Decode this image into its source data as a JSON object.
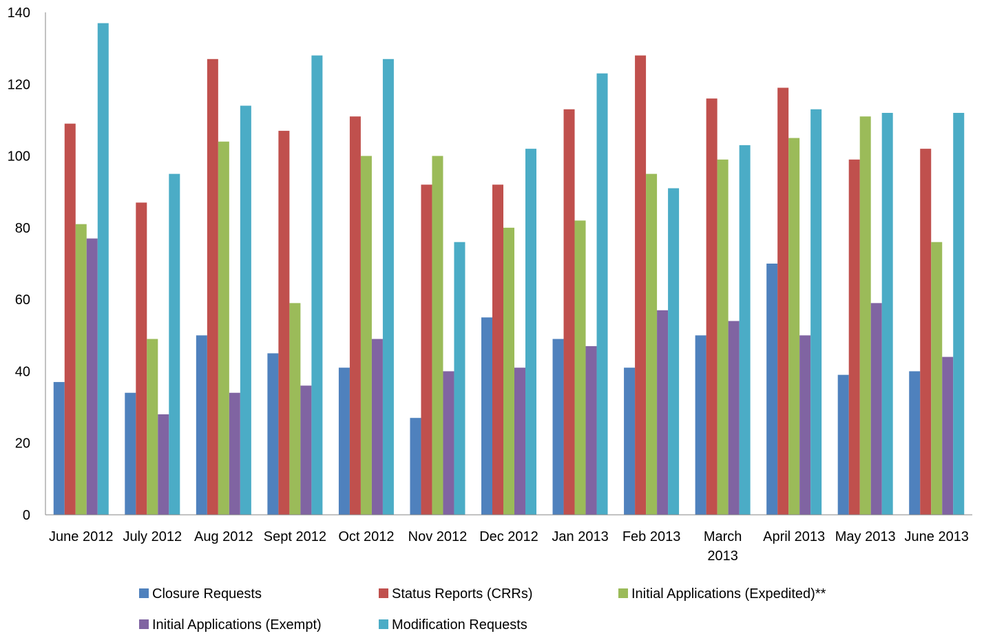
{
  "chart_data": {
    "type": "bar",
    "title": "",
    "xlabel": "",
    "ylabel": "",
    "ylim": [
      0,
      140
    ],
    "yticks": [
      0,
      20,
      40,
      60,
      80,
      100,
      120,
      140
    ],
    "grid": false,
    "legend_position": "bottom",
    "categories": [
      "June 2012",
      "July 2012",
      "Aug 2012",
      "Sept 2012",
      "Oct 2012",
      "Nov 2012",
      "Dec 2012",
      "Jan 2013",
      "Feb 2013",
      "March 2013",
      "April 2013",
      "May 2013",
      "June 2013"
    ],
    "category_display_lines": [
      [
        "June 2012"
      ],
      [
        "July 2012"
      ],
      [
        "Aug 2012"
      ],
      [
        "Sept 2012"
      ],
      [
        "Oct 2012"
      ],
      [
        "Nov 2012"
      ],
      [
        "Dec 2012"
      ],
      [
        "Jan 2013"
      ],
      [
        "Feb 2013"
      ],
      [
        "March",
        "2013"
      ],
      [
        "April 2013"
      ],
      [
        "May 2013"
      ],
      [
        "June 2013"
      ]
    ],
    "series": [
      {
        "name": "Closure Requests",
        "color": "#4F81BD",
        "values": [
          37,
          34,
          50,
          45,
          41,
          27,
          55,
          49,
          41,
          50,
          70,
          39,
          40
        ]
      },
      {
        "name": "Status Reports (CRRs)",
        "color": "#C0504D",
        "values": [
          109,
          87,
          127,
          107,
          111,
          92,
          92,
          113,
          128,
          116,
          119,
          99,
          102
        ]
      },
      {
        "name": "Initial Applications (Expedited)**",
        "color": "#9BBB59",
        "values": [
          81,
          49,
          104,
          59,
          100,
          100,
          80,
          82,
          95,
          99,
          105,
          111,
          76
        ]
      },
      {
        "name": "Initial Applications (Exempt)",
        "color": "#8064A2",
        "values": [
          77,
          28,
          34,
          36,
          49,
          40,
          41,
          47,
          57,
          54,
          50,
          59,
          44
        ]
      },
      {
        "name": "Modification Requests",
        "color": "#4BACC6",
        "values": [
          137,
          95,
          114,
          128,
          127,
          76,
          102,
          123,
          91,
          103,
          113,
          112,
          112
        ]
      }
    ]
  }
}
